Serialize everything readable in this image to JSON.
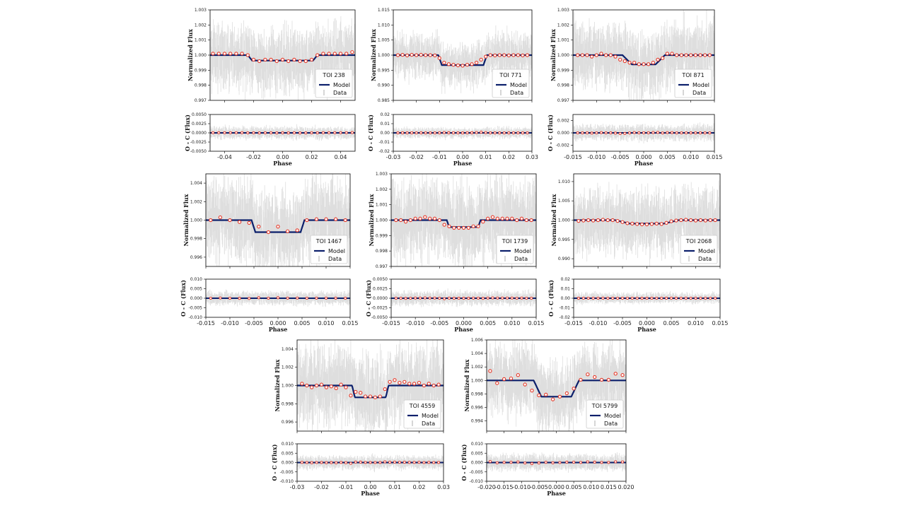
{
  "legend": {
    "model_label": "Model",
    "data_label": "Data"
  },
  "chart_data": [
    {
      "type": "line",
      "title": "TOI 238",
      "xlabel": "Phase",
      "ylabel_top": "Normalized Flux",
      "ylabel_bottom": "O - C (Flux)",
      "xlim": [
        -0.05,
        0.05
      ],
      "xticks": [
        "-0.04",
        "-0.02",
        "0.00",
        "0.02",
        "0.04"
      ],
      "xtick_values": [
        -0.04,
        -0.02,
        0,
        0.02,
        0.04
      ],
      "ylim": [
        0.997,
        1.003
      ],
      "yticks": [
        "1.003",
        "1.002",
        "1.001",
        "1.000",
        "0.999",
        "0.998",
        "0.997"
      ],
      "ytick_values": [
        1.003,
        1.002,
        1.001,
        1.0,
        0.999,
        0.998,
        0.997
      ],
      "res_ylim": [
        -0.005,
        0.005
      ],
      "res_yticks": [
        "0.0050",
        "0.0025",
        "0.0000",
        "-0.0025",
        "-0.0050"
      ],
      "res_ytick_values": [
        0.005,
        0.0025,
        0,
        -0.0025,
        -0.005
      ],
      "noise": 0.0009,
      "res_noise": 0.0012,
      "bin_scatter": 3e-05,
      "model": {
        "depth": 0.00036,
        "half_width": 0.024,
        "ingress": 0.003
      },
      "binned_x": [
        -0.048,
        -0.044,
        -0.04,
        -0.036,
        -0.032,
        -0.028,
        -0.024,
        -0.02,
        -0.016,
        -0.012,
        -0.008,
        -0.004,
        0.0,
        0.004,
        0.008,
        0.012,
        0.016,
        0.02,
        0.024,
        0.028,
        0.032,
        0.036,
        0.04,
        0.044,
        0.048
      ],
      "binned_y": [
        1.0001,
        1.0001,
        1.0001,
        1.0001,
        1.0001,
        1.0001,
        1.0,
        0.9997,
        0.9996,
        0.9997,
        0.9997,
        0.9996,
        0.9997,
        0.9996,
        0.9997,
        0.9996,
        0.9996,
        0.9997,
        1.0,
        1.0001,
        1.0001,
        1.0001,
        1.0001,
        1.0001,
        1.0002
      ]
    },
    {
      "type": "line",
      "title": "TOI 771",
      "xlabel": "Phase",
      "ylabel_top": "Normalized Flux",
      "ylabel_bottom": "O - C (Flux)",
      "xlim": [
        -0.03,
        0.03
      ],
      "xticks": [
        "-0.03",
        "-0.02",
        "-0.01",
        "0.00",
        "0.01",
        "0.02",
        "0.03"
      ],
      "xtick_values": [
        -0.03,
        -0.02,
        -0.01,
        0,
        0.01,
        0.02,
        0.03
      ],
      "ylim": [
        0.985,
        1.015
      ],
      "yticks": [
        "1.015",
        "1.010",
        "1.005",
        "1.000",
        "0.995",
        "0.990",
        "0.985"
      ],
      "ytick_values": [
        1.015,
        1.01,
        1.005,
        1.0,
        0.995,
        0.99,
        0.985
      ],
      "res_ylim": [
        -0.02,
        0.02
      ],
      "res_yticks": [
        "0.02",
        "0.01",
        "0.00",
        "-0.01",
        "-0.02"
      ],
      "res_ytick_values": [
        0.02,
        0.01,
        0,
        -0.01,
        -0.02
      ],
      "noise": 0.003,
      "res_noise": 0.004,
      "bin_scatter": 0.0002,
      "model": {
        "depth": 0.0033,
        "half_width": 0.0105,
        "ingress": 0.0015
      },
      "binned_x": [
        -0.028,
        -0.026,
        -0.024,
        -0.022,
        -0.02,
        -0.018,
        -0.016,
        -0.014,
        -0.012,
        -0.01,
        -0.008,
        -0.006,
        -0.004,
        -0.002,
        0.0,
        0.002,
        0.004,
        0.006,
        0.008,
        0.01,
        0.012,
        0.014,
        0.016,
        0.018,
        0.02,
        0.022,
        0.024,
        0.026,
        0.028
      ],
      "binned_y": [
        1.0,
        1.0001,
        0.9999,
        1.0001,
        1.0,
        1.0001,
        1.0,
        1.0,
        0.9999,
        0.999,
        0.9975,
        0.997,
        0.9968,
        0.9966,
        0.9965,
        0.9968,
        0.997,
        0.9975,
        0.9985,
        0.9995,
        1.0,
        0.9999,
        1.0,
        1.0,
        0.9999,
        1.0,
        1.0,
        0.9999,
        1.0
      ]
    },
    {
      "type": "line",
      "title": "TOI 871",
      "xlabel": "Phase",
      "ylabel_top": "Normalized Flux",
      "ylabel_bottom": "O - C (Flux)",
      "xlim": [
        -0.015,
        0.015
      ],
      "xticks": [
        "-0.015",
        "-0.010",
        "-0.005",
        "0.000",
        "0.005",
        "0.010",
        "0.015"
      ],
      "xtick_values": [
        -0.015,
        -0.01,
        -0.005,
        0,
        0.005,
        0.01,
        0.015
      ],
      "ylim": [
        0.997,
        1.003
      ],
      "yticks": [
        "1.003",
        "1.002",
        "1.001",
        "1.000",
        "0.999",
        "0.998",
        "0.997"
      ],
      "ytick_values": [
        1.003,
        1.002,
        1.001,
        1.0,
        0.999,
        0.998,
        0.997
      ],
      "res_ylim": [
        -0.003,
        0.003
      ],
      "res_yticks": [
        "0.002",
        "0.000",
        "-0.002"
      ],
      "res_ytick_values": [
        0.002,
        0,
        -0.002
      ],
      "noise": 0.0009,
      "res_noise": 0.0009,
      "bin_scatter": 4e-05,
      "model": {
        "depth": 0.00062,
        "half_width": 0.0045,
        "ingress": 0.002
      },
      "binned_x": [
        -0.014,
        -0.013,
        -0.012,
        -0.011,
        -0.01,
        -0.009,
        -0.008,
        -0.007,
        -0.006,
        -0.005,
        -0.004,
        -0.003,
        -0.002,
        -0.001,
        0.0,
        0.001,
        0.002,
        0.003,
        0.004,
        0.005,
        0.006,
        0.007,
        0.008,
        0.009,
        0.01,
        0.011,
        0.012,
        0.013,
        0.014
      ],
      "binned_y": [
        1.0,
        1.0,
        1.0,
        0.9999,
        1.0,
        1.0001,
        1.0,
        1.0,
        0.9999,
        0.9997,
        0.9996,
        0.9995,
        0.9995,
        0.9994,
        0.9994,
        0.9994,
        0.9995,
        0.9997,
        0.9998,
        1.0001,
        1.0001,
        1.0,
        1.0,
        1.0,
        1.0,
        1.0,
        1.0,
        1.0,
        1.0
      ]
    },
    {
      "type": "line",
      "title": "TOI 1467",
      "xlabel": "Phase",
      "ylabel_top": "Normalized Flux",
      "ylabel_bottom": "O - C (Flux)",
      "xlim": [
        -0.015,
        0.015
      ],
      "xticks": [
        "-0.015",
        "-0.010",
        "-0.005",
        "0.000",
        "0.005",
        "0.010",
        "0.015"
      ],
      "xtick_values": [
        -0.015,
        -0.01,
        -0.005,
        0,
        0.005,
        0.01,
        0.015
      ],
      "ylim": [
        0.995,
        1.005
      ],
      "yticks": [
        "1.004",
        "1.002",
        "1.000",
        "0.998",
        "0.996"
      ],
      "ytick_values": [
        1.004,
        1.002,
        1.0,
        0.998,
        0.996
      ],
      "res_ylim": [
        -0.01,
        0.01
      ],
      "res_yticks": [
        "0.010",
        "0.005",
        "0.000",
        "-0.005",
        "-0.010"
      ],
      "res_ytick_values": [
        0.01,
        0.005,
        0,
        -0.005,
        -0.01
      ],
      "noise": 0.0018,
      "res_noise": 0.0025,
      "bin_scatter": 0.00015,
      "model": {
        "depth": 0.0013,
        "half_width": 0.0055,
        "ingress": 0.0008
      },
      "binned_x": [
        -0.014,
        -0.012,
        -0.01,
        -0.008,
        -0.006,
        -0.004,
        -0.002,
        0.0,
        0.002,
        0.004,
        0.006,
        0.008,
        0.01,
        0.012,
        0.014
      ],
      "binned_y": [
        1.0,
        1.0003,
        1.0,
        0.9998,
        0.9997,
        0.9993,
        0.9987,
        0.9993,
        0.9988,
        0.9989,
        1.0,
        1.0001,
        1.0001,
        1.0001,
        1.0
      ]
    },
    {
      "type": "line",
      "title": "TOI 1739",
      "xlabel": "Phase",
      "ylabel_top": "Normalized Flux",
      "ylabel_bottom": "O - C (Flux)",
      "xlim": [
        -0.015,
        0.015
      ],
      "xticks": [
        "-0.015",
        "-0.010",
        "-0.005",
        "0.000",
        "0.005",
        "0.010",
        "0.015"
      ],
      "xtick_values": [
        -0.015,
        -0.01,
        -0.005,
        0,
        0.005,
        0.01,
        0.015
      ],
      "ylim": [
        0.997,
        1.003
      ],
      "yticks": [
        "1.003",
        "1.002",
        "1.001",
        "1.000",
        "0.999",
        "0.998",
        "0.997"
      ],
      "ytick_values": [
        1.003,
        1.002,
        1.001,
        1.0,
        0.999,
        0.998,
        0.997
      ],
      "res_ylim": [
        -0.005,
        0.005
      ],
      "res_yticks": [
        "0.0050",
        "0.0025",
        "0.0000",
        "-0.0025",
        "-0.0050"
      ],
      "res_ytick_values": [
        0.005,
        0.0025,
        0,
        -0.0025,
        -0.005
      ],
      "noise": 0.0011,
      "res_noise": 0.0013,
      "bin_scatter": 5e-05,
      "model": {
        "depth": 0.00045,
        "half_width": 0.0035,
        "ingress": 0.0005
      },
      "binned_x": [
        -0.014,
        -0.013,
        -0.012,
        -0.011,
        -0.01,
        -0.009,
        -0.008,
        -0.007,
        -0.006,
        -0.005,
        -0.004,
        -0.003,
        -0.002,
        -0.001,
        0.0,
        0.001,
        0.002,
        0.003,
        0.004,
        0.005,
        0.006,
        0.007,
        0.008,
        0.009,
        0.01,
        0.011,
        0.012,
        0.013,
        0.014
      ],
      "binned_y": [
        1.0,
        1.0,
        0.9999,
        1.0,
        1.0001,
        1.0001,
        1.0002,
        1.0001,
        1.0001,
        1.0,
        0.9997,
        0.9996,
        0.9995,
        0.9995,
        0.9995,
        0.9995,
        0.9996,
        0.9996,
        0.9999,
        1.0001,
        1.0002,
        1.0001,
        1.0001,
        1.0001,
        1.0001,
        1.0,
        1.0001,
        1.0,
        1.0
      ]
    },
    {
      "type": "line",
      "title": "TOI 2068",
      "xlabel": "Phase",
      "ylabel_top": "Normalized Flux",
      "ylabel_bottom": "O - C (Flux)",
      "xlim": [
        -0.015,
        0.015
      ],
      "xticks": [
        "-0.015",
        "-0.010",
        "-0.005",
        "0.000",
        "0.005",
        "0.010",
        "0.015"
      ],
      "xtick_values": [
        -0.015,
        -0.01,
        -0.005,
        0,
        0.005,
        0.01,
        0.015
      ],
      "ylim": [
        0.988,
        1.012
      ],
      "yticks": [
        "1.010",
        "1.005",
        "1.000",
        "0.995",
        "0.990"
      ],
      "ytick_values": [
        1.01,
        1.005,
        1.0,
        0.995,
        0.99
      ],
      "res_ylim": [
        -0.02,
        0.02
      ],
      "res_yticks": [
        "0.02",
        "0.01",
        "0.00",
        "-0.01",
        "-0.02"
      ],
      "res_ytick_values": [
        0.02,
        0.01,
        0,
        -0.01,
        -0.02
      ],
      "noise": 0.0035,
      "res_noise": 0.004,
      "bin_scatter": 0.0002,
      "model": {
        "depth": 0.0009,
        "half_width": 0.0065,
        "ingress": 0.003
      },
      "binned_x": [
        -0.014,
        -0.013,
        -0.012,
        -0.011,
        -0.01,
        -0.009,
        -0.008,
        -0.007,
        -0.006,
        -0.005,
        -0.004,
        -0.003,
        -0.002,
        -0.001,
        0.0,
        0.001,
        0.002,
        0.003,
        0.004,
        0.005,
        0.006,
        0.007,
        0.008,
        0.009,
        0.01,
        0.011,
        0.012,
        0.013,
        0.014
      ],
      "binned_y": [
        0.9998,
        0.9999,
        1.0,
        0.9999,
        1.0,
        1.0001,
        1.0,
        1.0,
        0.9998,
        0.9995,
        0.9992,
        0.9991,
        0.999,
        0.9989,
        0.9989,
        0.999,
        0.9991,
        0.999,
        0.9993,
        0.9997,
        0.9999,
        1.0,
        1.0001,
        1.0,
        0.9999,
        1.0,
        0.9999,
        1.0,
        1.0
      ]
    },
    {
      "type": "line",
      "title": "TOI 4559",
      "xlabel": "Phase",
      "ylabel_top": "Normalized Flux",
      "ylabel_bottom": "O - C (Flux)",
      "xlim": [
        -0.03,
        0.03
      ],
      "xticks": [
        "-0.03",
        "-0.02",
        "-0.01",
        "0.00",
        "0.01",
        "0.02",
        "0.03"
      ],
      "xtick_values": [
        -0.03,
        -0.02,
        -0.01,
        0,
        0.01,
        0.02,
        0.03
      ],
      "ylim": [
        0.995,
        1.005
      ],
      "yticks": [
        "1.004",
        "1.002",
        "1.000",
        "0.998",
        "0.996"
      ],
      "ytick_values": [
        1.004,
        1.002,
        1.0,
        0.998,
        0.996
      ],
      "res_ylim": [
        -0.01,
        0.01
      ],
      "res_yticks": [
        "0.010",
        "0.005",
        "0.000",
        "-0.005",
        "-0.010"
      ],
      "res_ytick_values": [
        0.01,
        0.005,
        0,
        -0.005,
        -0.01
      ],
      "noise": 0.0018,
      "res_noise": 0.0025,
      "bin_scatter": 0.0001,
      "model": {
        "depth": 0.0013,
        "half_width": 0.0075,
        "ingress": 0.0012
      },
      "binned_x": [
        -0.028,
        -0.026,
        -0.024,
        -0.022,
        -0.02,
        -0.018,
        -0.016,
        -0.014,
        -0.012,
        -0.01,
        -0.008,
        -0.006,
        -0.004,
        -0.002,
        0.0,
        0.002,
        0.004,
        0.006,
        0.008,
        0.01,
        0.012,
        0.014,
        0.016,
        0.018,
        0.02,
        0.022,
        0.024,
        0.026,
        0.028
      ],
      "binned_y": [
        1.0002,
        1.0,
        0.9998,
        1.0,
        1.0001,
        0.9998,
        0.9999,
        0.9997,
        1.0001,
        0.9998,
        0.9989,
        0.9993,
        0.9992,
        0.9988,
        0.9988,
        0.9987,
        0.9988,
        0.9996,
        1.0004,
        1.0006,
        1.0003,
        1.0004,
        1.0002,
        1.0002,
        1.0003,
        1.0,
        1.0002,
        1.0,
        1.0001
      ]
    },
    {
      "type": "line",
      "title": "TOI 5799",
      "xlabel": "Phase",
      "ylabel_top": "Normalized Flux",
      "ylabel_bottom": "O - C (Flux)",
      "xlim": [
        -0.02,
        0.02
      ],
      "xticks": [
        "-0.020",
        "-0.015",
        "-0.010",
        "-0.005",
        "0.000",
        "0.005",
        "0.010",
        "0.015",
        "0.020"
      ],
      "xtick_values": [
        -0.02,
        -0.015,
        -0.01,
        -0.005,
        0,
        0.005,
        0.01,
        0.015,
        0.02
      ],
      "ylim": [
        0.9925,
        1.006
      ],
      "yticks": [
        "1.006",
        "1.004",
        "1.002",
        "1.000",
        "0.998",
        "0.996",
        "0.994"
      ],
      "ytick_values": [
        1.006,
        1.004,
        1.002,
        1.0,
        0.998,
        0.996,
        0.994
      ],
      "res_ylim": [
        -0.01,
        0.01
      ],
      "res_yticks": [
        "0.010",
        "0.005",
        "0.000",
        "-0.005",
        "-0.010"
      ],
      "res_ytick_values": [
        0.01,
        0.005,
        0,
        -0.005,
        -0.01
      ],
      "noise": 0.0022,
      "res_noise": 0.003,
      "bin_scatter": 0.0002,
      "model": {
        "depth": 0.0024,
        "half_width": 0.0065,
        "ingress": 0.0022
      },
      "binned_x": [
        -0.019,
        -0.017,
        -0.015,
        -0.013,
        -0.011,
        -0.009,
        -0.007,
        -0.005,
        -0.003,
        -0.001,
        0.001,
        0.003,
        0.005,
        0.007,
        0.009,
        0.011,
        0.013,
        0.015,
        0.017,
        0.019
      ],
      "binned_y": [
        1.0014,
        0.9996,
        1.0002,
        1.0003,
        1.0008,
        0.9994,
        0.9985,
        0.9978,
        0.9979,
        0.9972,
        0.9976,
        0.9981,
        0.9988,
        1.0001,
        1.0009,
        1.0005,
        1.0001,
        1.0001,
        1.001,
        1.0008
      ]
    }
  ]
}
